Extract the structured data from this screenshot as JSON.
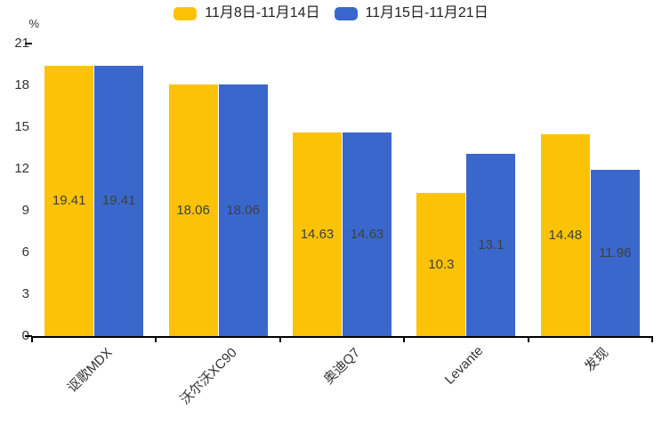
{
  "chart_data": {
    "type": "bar",
    "title": "",
    "unit": "%",
    "categories": [
      "讴歌MDX",
      "沃尔沃XC90",
      "奥迪Q7",
      "Levante",
      "发现"
    ],
    "series": [
      {
        "name": "11月8日-11月14日",
        "color": "#FCC306",
        "values": [
          19.41,
          18.06,
          14.63,
          10.3,
          14.48
        ]
      },
      {
        "name": "11月15日-11月21日",
        "color": "#3A67CB",
        "values": [
          19.41,
          18.06,
          14.63,
          13.1,
          11.96
        ]
      }
    ],
    "yticks": [
      0,
      3,
      6,
      9,
      12,
      15,
      18,
      21
    ],
    "ylim": [
      0,
      21
    ],
    "legend_position": "top-center",
    "grid": false,
    "bar_label_position": "inside-center",
    "xlabel_rotation_deg": 45,
    "colors": {
      "axis": "#000000",
      "text": "#333333",
      "bar_value_label": "#3f3f3f",
      "legend_text": "#222222",
      "background": "#ffffff"
    }
  }
}
